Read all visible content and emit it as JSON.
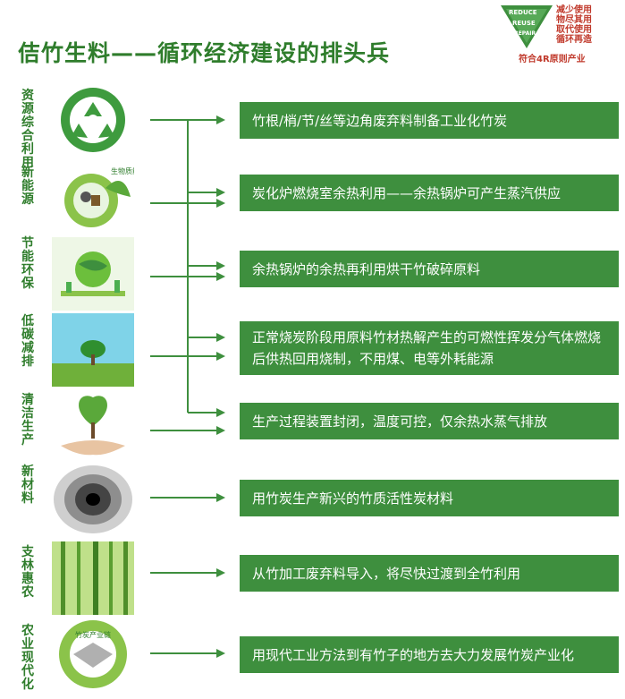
{
  "title": "佶竹生料——循环经济建设的排头兵",
  "badge": {
    "reduce": "REDUCE",
    "reuse": "REUSE",
    "repair": "REPAIR",
    "lines": [
      "减少使用",
      "物尽其用",
      "取代使用",
      "循环再造"
    ],
    "bottom": "符合4R原则产业"
  },
  "rows": [
    {
      "label": "资源综合利用",
      "icon": "recycle-icon",
      "text": "竹根/梢/节/丝等边角废弃料制备工业化竹炭"
    },
    {
      "label": "新能源",
      "icon": "eco-energy-icon",
      "icon_text": "生物质能",
      "text": "炭化炉燃烧室余热利用——余热锅炉可产生蒸汽供应"
    },
    {
      "label": "节能环保",
      "icon": "green-earth-icon",
      "text": "余热锅炉的余热再利用烘干竹破碎原料"
    },
    {
      "label": "低碳减排",
      "icon": "tree-sky-icon",
      "text": "正常烧炭阶段用原料竹材热解产生的可燃性挥发分气体燃烧后供热回用烧制，不用煤、电等外耗能源"
    },
    {
      "label": "清洁生产",
      "icon": "hands-tree-icon",
      "text": "生产过程装置封闭，温度可控，仅余热水蒸气排放"
    },
    {
      "label": "新材料",
      "icon": "mesh-tunnel-icon",
      "text": "用竹炭生产新兴的竹质活性炭材料"
    },
    {
      "label": "支林惠农",
      "icon": "bamboo-forest-icon",
      "text": "从竹加工废弃料导入，将尽快过渡到全竹利用"
    },
    {
      "label": "农业现代化",
      "icon": "agri-cycle-icon",
      "icon_text": "竹炭产业链",
      "text": "用现代工业方法到有竹子的地方去大力发展竹炭产业化"
    }
  ],
  "colors": {
    "green": "#3e8f3e",
    "title": "#2f7d2c",
    "red": "#c0392b"
  }
}
